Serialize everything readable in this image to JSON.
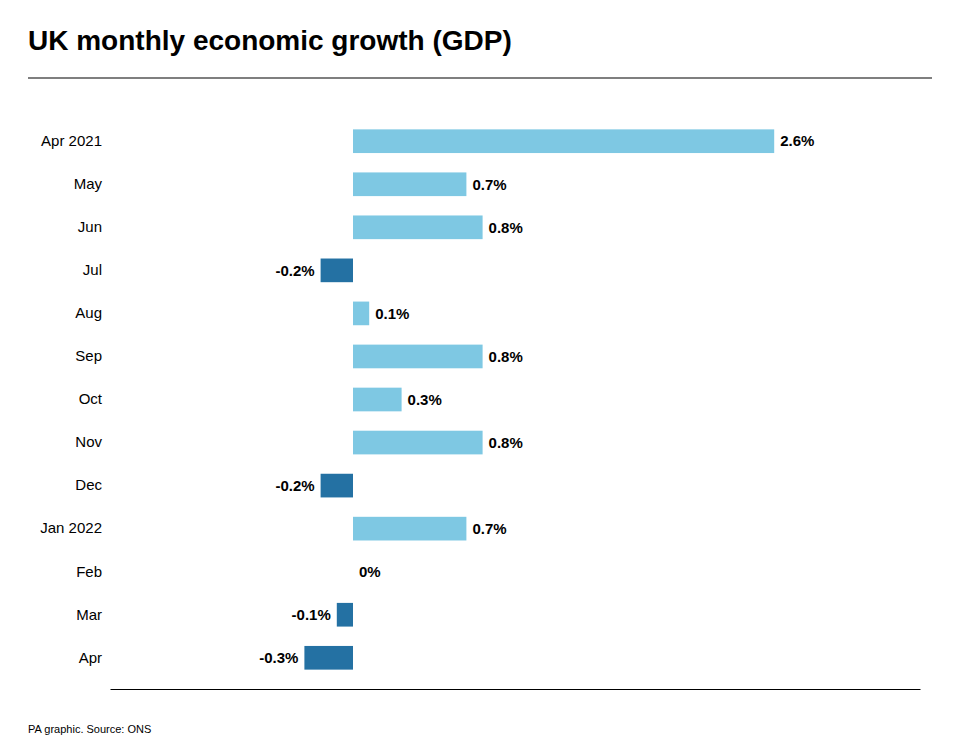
{
  "chart_data": {
    "type": "bar",
    "orientation": "horizontal",
    "title": "UK monthly economic growth (GDP)",
    "annotations": [
      "PA graphic. Source: ONS"
    ],
    "categories": [
      "Apr 2021",
      "May",
      "Jun",
      "Jul",
      "Aug",
      "Sep",
      "Oct",
      "Nov",
      "Dec",
      "Jan 2022",
      "Feb",
      "Mar",
      "Apr"
    ],
    "values": [
      2.6,
      0.7,
      0.8,
      -0.2,
      0.1,
      0.8,
      0.3,
      0.8,
      -0.2,
      0.7,
      0.0,
      -0.1,
      -0.3
    ],
    "value_labels": [
      "2.6%",
      "0.7%",
      "0.8%",
      "-0.2%",
      "0.1%",
      "0.8%",
      "0.3%",
      "0.8%",
      "-0.2%",
      "0.7%",
      "0%",
      "-0.1%",
      "-0.3%"
    ],
    "colors": [
      "#7EC8E3",
      "#7EC8E3",
      "#7EC8E3",
      "#2471A3",
      "#7EC8E3",
      "#7EC8E3",
      "#7EC8E3",
      "#7EC8E3",
      "#2471A3",
      "#7EC8E3",
      "#7EC8E3",
      "#2471A3",
      "#2471A3"
    ],
    "xlim": [
      -1.5,
      3.5
    ],
    "tick_labels": "y",
    "data_labels": true
  }
}
